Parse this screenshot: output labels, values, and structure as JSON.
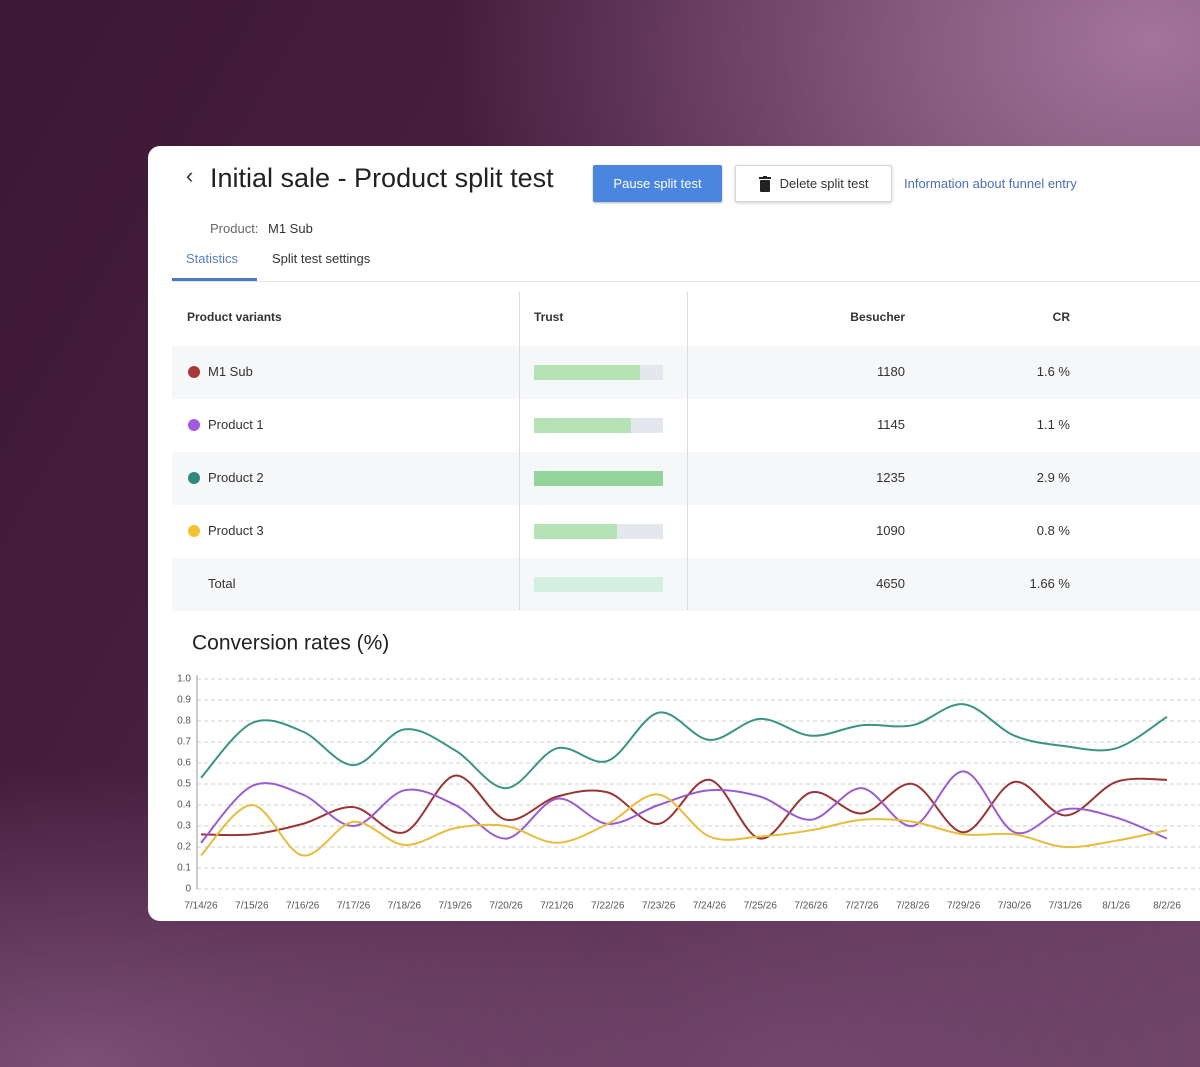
{
  "header": {
    "title": "Initial sale - Product split test",
    "buttons": [
      "Pause split test",
      "Delete split test"
    ],
    "link": "Information about funnel entry"
  },
  "product": {
    "label": "Product:",
    "value": "M1 Sub"
  },
  "tabs": [
    "Statistics",
    "Split test settings"
  ],
  "table": {
    "columns": [
      "Product variants",
      "Trust",
      "Besucher",
      "CR"
    ],
    "trust_lim": [
      0,
      100
    ],
    "rows": [
      {
        "name": "M1 Sub",
        "color": "#a83a35",
        "trust": 82,
        "visitors": 1180,
        "cr": "1.6 %"
      },
      {
        "name": "Product 1",
        "color": "#a25ae0",
        "trust": 75,
        "visitors": 1145,
        "cr": "1.1 %"
      },
      {
        "name": "Product 2",
        "color": "#2f8a7c",
        "trust": 100,
        "visitors": 1235,
        "cr": "2.9 %"
      },
      {
        "name": "Product 3",
        "color": "#f2c232",
        "trust": 64,
        "visitors": 1090,
        "cr": "0.8 %"
      },
      {
        "name": "Total",
        "trust": 100,
        "visitors": 4650,
        "cr": "1.66 %"
      }
    ]
  },
  "chart_data": {
    "type": "line",
    "title": "Conversion rates (%)",
    "categories": [
      "7/14/26",
      "7/15/26",
      "7/16/26",
      "7/17/26",
      "7/18/26",
      "7/19/26",
      "7/20/26",
      "7/21/26",
      "7/22/26",
      "7/23/26",
      "7/24/26",
      "7/25/26",
      "7/26/26",
      "7/27/26",
      "7/28/26",
      "7/29/26",
      "7/30/26",
      "7/31/26",
      "8/1/26",
      "8/2/26"
    ],
    "ylim": [
      0,
      1
    ],
    "yticks": [
      0,
      0.1,
      0.2,
      0.3,
      0.4,
      0.5,
      0.6,
      0.7,
      0.8,
      0.9,
      {
        "value": 1,
        "label": "1.0"
      }
    ],
    "grid": true,
    "series": [
      {
        "name": "Product 2",
        "color": "#3a9486",
        "values": [
          0.53,
          0.79,
          0.75,
          0.59,
          0.76,
          0.66,
          0.48,
          0.67,
          0.61,
          0.84,
          0.71,
          0.81,
          0.73,
          0.78,
          0.78,
          0.88,
          0.73,
          0.68,
          0.67,
          0.82
        ]
      },
      {
        "name": "M1 Sub",
        "color": "#9a3535",
        "values": [
          0.26,
          0.26,
          0.31,
          0.39,
          0.27,
          0.54,
          0.33,
          0.44,
          0.46,
          0.31,
          0.52,
          0.24,
          0.46,
          0.36,
          0.5,
          0.27,
          0.51,
          0.35,
          0.51,
          0.52
        ]
      },
      {
        "name": "Product 1",
        "color": "#9b5bcf",
        "values": [
          0.22,
          0.49,
          0.45,
          0.3,
          0.47,
          0.4,
          0.24,
          0.43,
          0.31,
          0.4,
          0.47,
          0.44,
          0.33,
          0.48,
          0.3,
          0.56,
          0.27,
          0.38,
          0.34,
          0.24
        ]
      },
      {
        "name": "Product 3",
        "color": "#e6bd3d",
        "values": [
          0.16,
          0.4,
          0.16,
          0.32,
          0.21,
          0.29,
          0.3,
          0.22,
          0.31,
          0.45,
          0.25,
          0.25,
          0.28,
          0.33,
          0.32,
          0.26,
          0.26,
          0.2,
          0.23,
          0.28
        ]
      }
    ]
  }
}
